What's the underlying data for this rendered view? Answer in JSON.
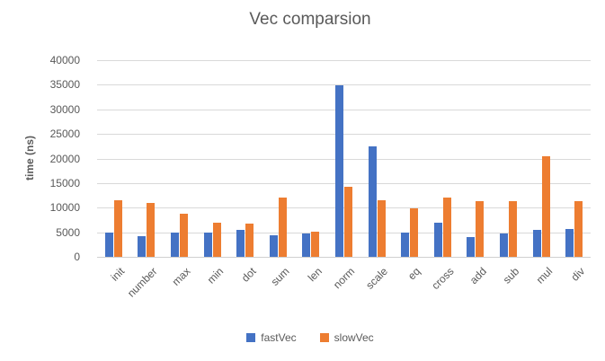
{
  "figure": {
    "background": "#FFFFFF"
  },
  "chart_data": {
    "type": "bar",
    "title": "Vec comparsion",
    "xlabel": "",
    "ylabel": "time (ns)",
    "ylim": [
      0,
      40000
    ],
    "ytick_step": 5000,
    "ytick_labels": [
      "0",
      "5000",
      "10000",
      "15000",
      "20000",
      "25000",
      "30000",
      "35000",
      "40000"
    ],
    "grid": true,
    "legend_position": "bottom-center",
    "categories": [
      "init",
      "number",
      "max",
      "min",
      "dot",
      "sum",
      "len",
      "norm",
      "scale",
      "eq",
      "cross",
      "add",
      "sub",
      "mul",
      "div"
    ],
    "series": [
      {
        "name": "fastVec",
        "color": "#4472C4",
        "values": [
          5000,
          4200,
          4900,
          4900,
          5400,
          4400,
          4800,
          34900,
          22400,
          4900,
          6900,
          4000,
          4800,
          5400,
          5700
        ]
      },
      {
        "name": "slowVec",
        "color": "#ED7D31",
        "values": [
          11600,
          11000,
          8700,
          6900,
          6800,
          12000,
          5200,
          14300,
          11500,
          9800,
          12000,
          11400,
          11400,
          20400,
          11400
        ]
      }
    ]
  },
  "colors": {
    "grid": "#D9D9D9",
    "axis": "#D0D0D0",
    "text": "#595959"
  }
}
